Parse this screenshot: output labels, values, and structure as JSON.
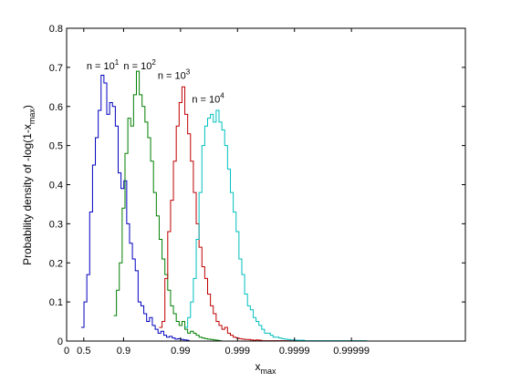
{
  "chart_data": {
    "type": "line",
    "xlabel": "x",
    "xlabel_sub": "max",
    "ylabel": "Probability density of -log(1-x",
    "ylabel_sub": "max",
    "ylabel_end": ")",
    "xlim": [
      0,
      7
    ],
    "ylim": [
      0,
      0.8
    ],
    "x_ticks": [
      {
        "value": 0,
        "label": "0"
      },
      {
        "value": 0.30103,
        "label": "0.5"
      },
      {
        "value": 1,
        "label": "0.9"
      },
      {
        "value": 2,
        "label": "0.99"
      },
      {
        "value": 3,
        "label": "0.999"
      },
      {
        "value": 4,
        "label": "0.9999"
      },
      {
        "value": 5,
        "label": "0.99999"
      }
    ],
    "y_ticks": [
      {
        "value": 0,
        "label": "0"
      },
      {
        "value": 0.1,
        "label": "0.1"
      },
      {
        "value": 0.2,
        "label": "0.2"
      },
      {
        "value": 0.3,
        "label": "0.3"
      },
      {
        "value": 0.4,
        "label": "0.4"
      },
      {
        "value": 0.5,
        "label": "0.5"
      },
      {
        "value": 0.6,
        "label": "0.6"
      },
      {
        "value": 0.7,
        "label": "0.7"
      },
      {
        "value": 0.8,
        "label": "0.8"
      }
    ],
    "grid": false,
    "series": [
      {
        "label_base": "n = 10",
        "label_exp": "1",
        "label_at": [
          0.35,
          0.695
        ],
        "color": "#0000bf",
        "x": [
          0.28,
          0.33,
          0.38,
          0.43,
          0.48,
          0.53,
          0.58,
          0.63,
          0.68,
          0.73,
          0.78,
          0.83,
          0.88,
          0.93,
          0.98,
          1.03,
          1.08,
          1.13,
          1.18,
          1.23,
          1.28,
          1.33,
          1.38,
          1.43,
          1.48,
          1.53,
          1.58,
          1.63,
          1.68,
          1.73,
          1.78,
          1.83,
          1.88,
          1.93,
          1.98,
          2.03,
          2.08,
          2.13
        ],
        "y": [
          0.035,
          0.1,
          0.17,
          0.33,
          0.45,
          0.52,
          0.59,
          0.68,
          0.66,
          0.58,
          0.61,
          0.6,
          0.55,
          0.43,
          0.39,
          0.41,
          0.3,
          0.25,
          0.21,
          0.18,
          0.1,
          0.09,
          0.07,
          0.05,
          0.06,
          0.04,
          0.03,
          0.02,
          0.025,
          0.015,
          0.01,
          0.012,
          0.008,
          0.005,
          0.006,
          0.004,
          0.003,
          0.002
        ]
      },
      {
        "label_base": "n = 10",
        "label_exp": "2",
        "label_at": [
          1.0,
          0.695
        ],
        "color": "#007f00",
        "x": [
          0.85,
          0.9,
          0.95,
          1.0,
          1.05,
          1.1,
          1.15,
          1.2,
          1.25,
          1.3,
          1.35,
          1.4,
          1.45,
          1.5,
          1.55,
          1.6,
          1.65,
          1.7,
          1.75,
          1.8,
          1.85,
          1.9,
          1.95,
          2.0,
          2.05,
          2.1,
          2.15,
          2.2,
          2.25,
          2.3,
          2.35,
          2.4,
          2.45,
          2.5,
          2.55,
          2.6,
          2.65,
          2.7
        ],
        "y": [
          0.065,
          0.13,
          0.2,
          0.34,
          0.48,
          0.57,
          0.55,
          0.63,
          0.69,
          0.63,
          0.6,
          0.56,
          0.52,
          0.46,
          0.38,
          0.32,
          0.26,
          0.21,
          0.17,
          0.13,
          0.09,
          0.07,
          0.05,
          0.04,
          0.05,
          0.03,
          0.02,
          0.025,
          0.02,
          0.015,
          0.01,
          0.008,
          0.006,
          0.005,
          0.004,
          0.003,
          0.002,
          0.001
        ]
      },
      {
        "label_base": "n = 10",
        "label_exp": "3",
        "label_at": [
          1.6,
          0.67
        ],
        "color": "#bf0000",
        "x": [
          1.65,
          1.7,
          1.75,
          1.8,
          1.85,
          1.9,
          1.95,
          2.0,
          2.05,
          2.1,
          2.15,
          2.2,
          2.25,
          2.3,
          2.35,
          2.4,
          2.45,
          2.5,
          2.55,
          2.6,
          2.65,
          2.7,
          2.75,
          2.8,
          2.85,
          2.9,
          2.95,
          3.0,
          3.05,
          3.1,
          3.15,
          3.2,
          3.25,
          3.3,
          3.35,
          3.4,
          3.45,
          3.5,
          3.55,
          3.6,
          3.65,
          3.7,
          3.75,
          3.8,
          3.85,
          3.9,
          3.95,
          4.0
        ],
        "y": [
          0.035,
          0.05,
          0.16,
          0.28,
          0.36,
          0.46,
          0.55,
          0.61,
          0.65,
          0.58,
          0.53,
          0.46,
          0.38,
          0.3,
          0.24,
          0.19,
          0.16,
          0.12,
          0.09,
          0.07,
          0.05,
          0.04,
          0.03,
          0.035,
          0.02,
          0.015,
          0.01,
          0.008,
          0.006,
          0.005,
          0.004,
          0.004,
          0.003,
          0.002,
          0.003,
          0.002,
          0.001,
          0.001,
          0.001,
          0.001,
          0.001,
          0.001,
          0.001,
          0.001,
          0.001,
          0.001,
          0.001,
          0.001
        ]
      },
      {
        "label_base": "n = 10",
        "label_exp": "4",
        "label_at": [
          2.2,
          0.61
        ],
        "color": "#00bfbf",
        "x": [
          2.1,
          2.15,
          2.2,
          2.25,
          2.3,
          2.35,
          2.4,
          2.45,
          2.5,
          2.55,
          2.6,
          2.65,
          2.7,
          2.75,
          2.8,
          2.85,
          2.9,
          2.95,
          3.0,
          3.05,
          3.1,
          3.15,
          3.2,
          3.25,
          3.3,
          3.35,
          3.4,
          3.45,
          3.5,
          3.55,
          3.6,
          3.65,
          3.7,
          3.75,
          3.8,
          3.85,
          3.9,
          3.95,
          4.0,
          4.05,
          4.1,
          4.15,
          4.2,
          4.25,
          4.3,
          4.35,
          4.4,
          4.45,
          4.5,
          4.55,
          4.6,
          4.65,
          4.7,
          4.75,
          4.8,
          4.85,
          4.9,
          4.95,
          5.0,
          5.05,
          5.1,
          5.15,
          5.2,
          5.25
        ],
        "y": [
          0.035,
          0.06,
          0.1,
          0.16,
          0.26,
          0.38,
          0.5,
          0.55,
          0.57,
          0.58,
          0.56,
          0.59,
          0.56,
          0.54,
          0.5,
          0.44,
          0.38,
          0.33,
          0.28,
          0.21,
          0.17,
          0.12,
          0.09,
          0.08,
          0.06,
          0.05,
          0.04,
          0.03,
          0.02,
          0.02,
          0.015,
          0.01,
          0.01,
          0.008,
          0.006,
          0.005,
          0.004,
          0.003,
          0.003,
          0.002,
          0.002,
          0.002,
          0.001,
          0.001,
          0.001,
          0.001,
          0.001,
          0.001,
          0.001,
          0.001,
          0.001,
          0.001,
          0.001,
          0.001,
          0.001,
          0.001,
          0.001,
          0.001,
          0.001,
          0.001,
          0.001,
          0.001,
          0.001,
          0.001
        ]
      }
    ]
  }
}
